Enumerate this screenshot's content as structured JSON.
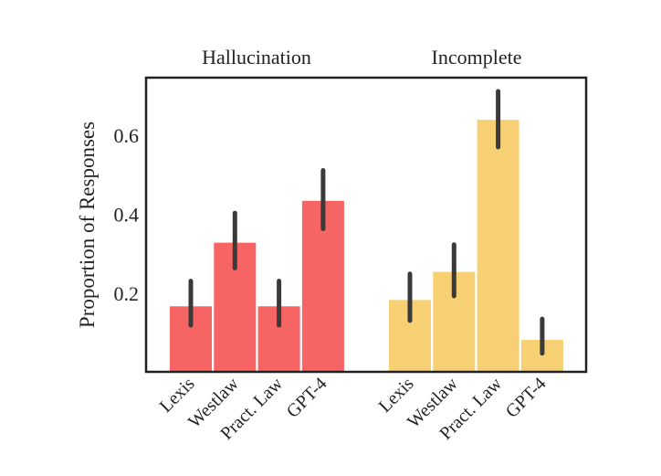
{
  "chart_data": {
    "type": "bar",
    "ylabel": "Proportion of Responses",
    "ylim": [
      0,
      0.746
    ],
    "yticks": [
      "0.2",
      "0.4",
      "0.6"
    ],
    "ytick_values": [
      0.2,
      0.4,
      0.6
    ],
    "grid": false,
    "colors": {
      "Hallucination": "#f76464",
      "Incomplete": "#f7d074",
      "errorbar": "#3a3a3a",
      "frame": "#222222"
    },
    "groups": [
      {
        "title": "Hallucination",
        "categories": [
          "Lexis",
          "Westlaw",
          "Pract. Law",
          "GPT-4"
        ],
        "values": [
          0.167,
          0.328,
          0.167,
          0.434
        ],
        "error_low": [
          0.119,
          0.264,
          0.119,
          0.363
        ],
        "error_high": [
          0.231,
          0.403,
          0.231,
          0.511
        ]
      },
      {
        "title": "Incomplete",
        "categories": [
          "Lexis",
          "Westlaw",
          "Pract. Law",
          "GPT-4"
        ],
        "values": [
          0.183,
          0.254,
          0.639,
          0.082
        ],
        "error_low": [
          0.131,
          0.193,
          0.57,
          0.048
        ],
        "error_high": [
          0.249,
          0.323,
          0.711,
          0.135
        ]
      }
    ]
  }
}
